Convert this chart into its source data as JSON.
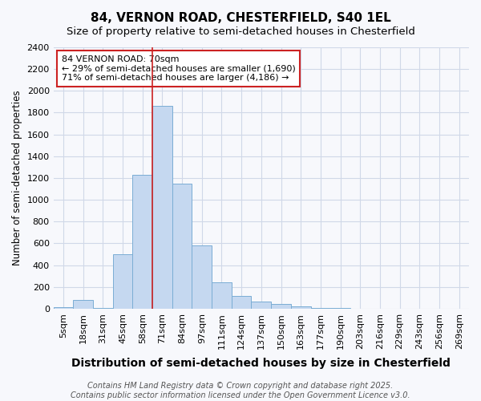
{
  "title": "84, VERNON ROAD, CHESTERFIELD, S40 1EL",
  "subtitle": "Size of property relative to semi-detached houses in Chesterfield",
  "xlabel": "Distribution of semi-detached houses by size in Chesterfield",
  "ylabel": "Number of semi-detached properties",
  "categories": [
    "5sqm",
    "18sqm",
    "31sqm",
    "45sqm",
    "58sqm",
    "71sqm",
    "84sqm",
    "97sqm",
    "111sqm",
    "124sqm",
    "137sqm",
    "150sqm",
    "163sqm",
    "177sqm",
    "190sqm",
    "203sqm",
    "216sqm",
    "229sqm",
    "243sqm",
    "256sqm",
    "269sqm"
  ],
  "values": [
    15,
    80,
    10,
    500,
    1230,
    1860,
    1150,
    580,
    245,
    115,
    65,
    40,
    20,
    5,
    5,
    2,
    1,
    1,
    1,
    1,
    1
  ],
  "bar_color": "#c5d8f0",
  "bar_edge_color": "#7aadd4",
  "redline_index": 5,
  "redline_color": "#cc2222",
  "annotation_line1": "84 VERNON ROAD: 70sqm",
  "annotation_line2": "← 29% of semi-detached houses are smaller (1,690)",
  "annotation_line3": "71% of semi-detached houses are larger (4,186) →",
  "annotation_box_facecolor": "#ffffff",
  "annotation_box_edgecolor": "#cc2222",
  "ylim": [
    0,
    2400
  ],
  "yticks": [
    0,
    200,
    400,
    600,
    800,
    1000,
    1200,
    1400,
    1600,
    1800,
    2000,
    2200,
    2400
  ],
  "bg_color": "#f7f8fc",
  "plot_bg_color": "#f7f8fc",
  "grid_color": "#d0d8e8",
  "title_fontsize": 11,
  "subtitle_fontsize": 9.5,
  "xlabel_fontsize": 10,
  "ylabel_fontsize": 8.5,
  "tick_fontsize": 8,
  "annot_fontsize": 8,
  "footer_fontsize": 7,
  "footer1": "Contains HM Land Registry data © Crown copyright and database right 2025.",
  "footer2": "Contains public sector information licensed under the Open Government Licence v3.0."
}
